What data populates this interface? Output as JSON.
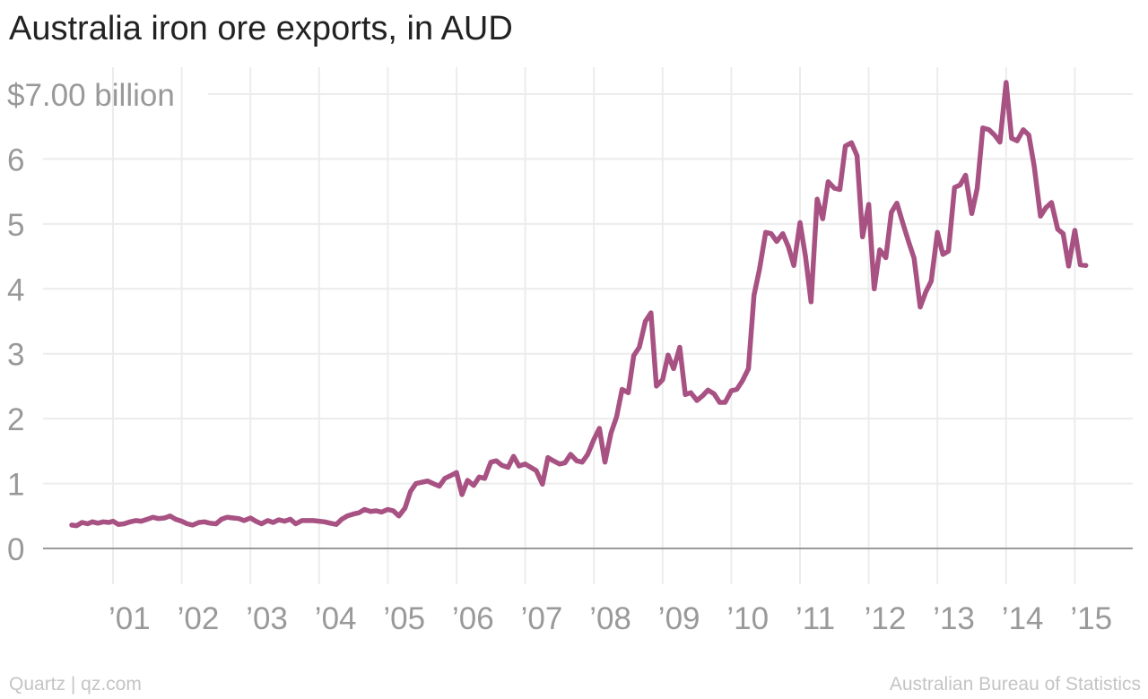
{
  "title": "Australia iron ore exports, in AUD",
  "footer": {
    "left": "Quartz | qz.com",
    "right": "Australian Bureau of Statistics"
  },
  "colors": {
    "line": "#a85283",
    "grid": "#ececec",
    "baseline": "#9a9a9a",
    "tick_text": "#999999"
  },
  "chart_data": {
    "type": "line",
    "title": "Australia iron ore exports, in AUD",
    "xlabel": "",
    "ylabel": "",
    "ylim": [
      0,
      7
    ],
    "xlim": [
      2000.0,
      2016.0
    ],
    "grid": true,
    "y_ticks": [
      {
        "value": 0,
        "label": "0"
      },
      {
        "value": 1,
        "label": "1"
      },
      {
        "value": 2,
        "label": "2"
      },
      {
        "value": 3,
        "label": "3"
      },
      {
        "value": 4,
        "label": "4"
      },
      {
        "value": 5,
        "label": "5"
      },
      {
        "value": 6,
        "label": "6"
      },
      {
        "value": 7,
        "label": "$7.00 billion"
      }
    ],
    "x_ticks": [
      {
        "value": 2001,
        "label": "’01"
      },
      {
        "value": 2002,
        "label": "’02"
      },
      {
        "value": 2003,
        "label": "’03"
      },
      {
        "value": 2004,
        "label": "’04"
      },
      {
        "value": 2005,
        "label": "’05"
      },
      {
        "value": 2006,
        "label": "’06"
      },
      {
        "value": 2007,
        "label": "’07"
      },
      {
        "value": 2008,
        "label": "’08"
      },
      {
        "value": 2009,
        "label": "’09"
      },
      {
        "value": 2010,
        "label": "’10"
      },
      {
        "value": 2011,
        "label": "’11"
      },
      {
        "value": 2012,
        "label": "’12"
      },
      {
        "value": 2013,
        "label": "’13"
      },
      {
        "value": 2014,
        "label": "’14"
      },
      {
        "value": 2015,
        "label": "’15"
      }
    ],
    "series": [
      {
        "color": "#a85283",
        "points": [
          [
            2000.4,
            0.36
          ],
          [
            2000.47,
            0.35
          ],
          [
            2000.55,
            0.4
          ],
          [
            2000.63,
            0.38
          ],
          [
            2000.7,
            0.41
          ],
          [
            2000.78,
            0.39
          ],
          [
            2000.86,
            0.41
          ],
          [
            2000.94,
            0.4
          ],
          [
            2001.0,
            0.42
          ],
          [
            2001.08,
            0.37
          ],
          [
            2001.16,
            0.38
          ],
          [
            2001.25,
            0.41
          ],
          [
            2001.33,
            0.43
          ],
          [
            2001.41,
            0.42
          ],
          [
            2001.5,
            0.45
          ],
          [
            2001.58,
            0.48
          ],
          [
            2001.66,
            0.46
          ],
          [
            2001.75,
            0.47
          ],
          [
            2001.83,
            0.5
          ],
          [
            2001.91,
            0.45
          ],
          [
            2002.0,
            0.42
          ],
          [
            2002.08,
            0.38
          ],
          [
            2002.16,
            0.36
          ],
          [
            2002.25,
            0.4
          ],
          [
            2002.33,
            0.41
          ],
          [
            2002.41,
            0.39
          ],
          [
            2002.5,
            0.38
          ],
          [
            2002.58,
            0.45
          ],
          [
            2002.66,
            0.48
          ],
          [
            2002.75,
            0.47
          ],
          [
            2002.83,
            0.46
          ],
          [
            2002.91,
            0.43
          ],
          [
            2003.0,
            0.47
          ],
          [
            2003.08,
            0.42
          ],
          [
            2003.16,
            0.38
          ],
          [
            2003.25,
            0.43
          ],
          [
            2003.33,
            0.4
          ],
          [
            2003.41,
            0.44
          ],
          [
            2003.5,
            0.42
          ],
          [
            2003.58,
            0.45
          ],
          [
            2003.66,
            0.38
          ],
          [
            2003.75,
            0.43
          ],
          [
            2003.83,
            0.43
          ],
          [
            2003.91,
            0.43
          ],
          [
            2004.0,
            0.42
          ],
          [
            2004.08,
            0.41
          ],
          [
            2004.16,
            0.39
          ],
          [
            2004.25,
            0.37
          ],
          [
            2004.33,
            0.45
          ],
          [
            2004.41,
            0.5
          ],
          [
            2004.5,
            0.53
          ],
          [
            2004.58,
            0.55
          ],
          [
            2004.66,
            0.6
          ],
          [
            2004.75,
            0.57
          ],
          [
            2004.83,
            0.58
          ],
          [
            2004.91,
            0.56
          ],
          [
            2005.0,
            0.6
          ],
          [
            2005.08,
            0.58
          ],
          [
            2005.16,
            0.5
          ],
          [
            2005.25,
            0.62
          ],
          [
            2005.33,
            0.88
          ],
          [
            2005.41,
            1.0
          ],
          [
            2005.5,
            1.02
          ],
          [
            2005.58,
            1.04
          ],
          [
            2005.66,
            1.0
          ],
          [
            2005.75,
            0.96
          ],
          [
            2005.83,
            1.08
          ],
          [
            2005.91,
            1.12
          ],
          [
            2006.0,
            1.17
          ],
          [
            2006.08,
            0.83
          ],
          [
            2006.16,
            1.05
          ],
          [
            2006.25,
            0.97
          ],
          [
            2006.33,
            1.1
          ],
          [
            2006.41,
            1.08
          ],
          [
            2006.5,
            1.33
          ],
          [
            2006.58,
            1.35
          ],
          [
            2006.66,
            1.28
          ],
          [
            2006.75,
            1.25
          ],
          [
            2006.83,
            1.42
          ],
          [
            2006.91,
            1.27
          ],
          [
            2007.0,
            1.3
          ],
          [
            2007.08,
            1.25
          ],
          [
            2007.16,
            1.2
          ],
          [
            2007.25,
            0.99
          ],
          [
            2007.33,
            1.4
          ],
          [
            2007.41,
            1.35
          ],
          [
            2007.5,
            1.3
          ],
          [
            2007.58,
            1.32
          ],
          [
            2007.66,
            1.45
          ],
          [
            2007.75,
            1.35
          ],
          [
            2007.83,
            1.33
          ],
          [
            2007.91,
            1.45
          ],
          [
            2008.0,
            1.68
          ],
          [
            2008.08,
            1.85
          ],
          [
            2008.16,
            1.33
          ],
          [
            2008.25,
            1.78
          ],
          [
            2008.33,
            2.03
          ],
          [
            2008.41,
            2.45
          ],
          [
            2008.5,
            2.4
          ],
          [
            2008.58,
            2.97
          ],
          [
            2008.66,
            3.1
          ],
          [
            2008.75,
            3.5
          ],
          [
            2008.83,
            3.63
          ],
          [
            2008.91,
            2.5
          ],
          [
            2009.0,
            2.6
          ],
          [
            2009.08,
            2.98
          ],
          [
            2009.16,
            2.77
          ],
          [
            2009.25,
            3.1
          ],
          [
            2009.33,
            2.37
          ],
          [
            2009.41,
            2.4
          ],
          [
            2009.5,
            2.28
          ],
          [
            2009.58,
            2.35
          ],
          [
            2009.66,
            2.44
          ],
          [
            2009.75,
            2.38
          ],
          [
            2009.83,
            2.25
          ],
          [
            2009.91,
            2.25
          ],
          [
            2010.0,
            2.43
          ],
          [
            2010.08,
            2.45
          ],
          [
            2010.16,
            2.58
          ],
          [
            2010.25,
            2.77
          ],
          [
            2010.33,
            3.9
          ],
          [
            2010.41,
            4.3
          ],
          [
            2010.5,
            4.87
          ],
          [
            2010.58,
            4.85
          ],
          [
            2010.66,
            4.73
          ],
          [
            2010.75,
            4.85
          ],
          [
            2010.83,
            4.65
          ],
          [
            2010.91,
            4.36
          ],
          [
            2011.0,
            5.02
          ],
          [
            2011.08,
            4.5
          ],
          [
            2011.16,
            3.8
          ],
          [
            2011.25,
            5.38
          ],
          [
            2011.33,
            5.08
          ],
          [
            2011.41,
            5.65
          ],
          [
            2011.5,
            5.55
          ],
          [
            2011.58,
            5.53
          ],
          [
            2011.66,
            6.2
          ],
          [
            2011.75,
            6.25
          ],
          [
            2011.83,
            6.05
          ],
          [
            2011.91,
            4.8
          ],
          [
            2012.0,
            5.3
          ],
          [
            2012.08,
            4.0
          ],
          [
            2012.16,
            4.6
          ],
          [
            2012.25,
            4.48
          ],
          [
            2012.33,
            5.18
          ],
          [
            2012.41,
            5.32
          ],
          [
            2012.5,
            5.0
          ],
          [
            2012.58,
            4.73
          ],
          [
            2012.66,
            4.47
          ],
          [
            2012.75,
            3.72
          ],
          [
            2012.83,
            3.95
          ],
          [
            2012.91,
            4.12
          ],
          [
            2013.0,
            4.87
          ],
          [
            2013.08,
            4.53
          ],
          [
            2013.16,
            4.58
          ],
          [
            2013.25,
            5.56
          ],
          [
            2013.33,
            5.6
          ],
          [
            2013.41,
            5.75
          ],
          [
            2013.5,
            5.16
          ],
          [
            2013.58,
            5.55
          ],
          [
            2013.66,
            6.48
          ],
          [
            2013.75,
            6.45
          ],
          [
            2013.83,
            6.37
          ],
          [
            2013.91,
            6.26
          ],
          [
            2014.0,
            7.18
          ],
          [
            2014.08,
            6.32
          ],
          [
            2014.16,
            6.28
          ],
          [
            2014.25,
            6.45
          ],
          [
            2014.33,
            6.37
          ],
          [
            2014.41,
            5.88
          ],
          [
            2014.5,
            5.12
          ],
          [
            2014.58,
            5.25
          ],
          [
            2014.66,
            5.33
          ],
          [
            2014.75,
            4.92
          ],
          [
            2014.83,
            4.85
          ],
          [
            2014.91,
            4.35
          ],
          [
            2015.0,
            4.9
          ],
          [
            2015.08,
            4.37
          ],
          [
            2015.16,
            4.36
          ]
        ]
      }
    ]
  }
}
